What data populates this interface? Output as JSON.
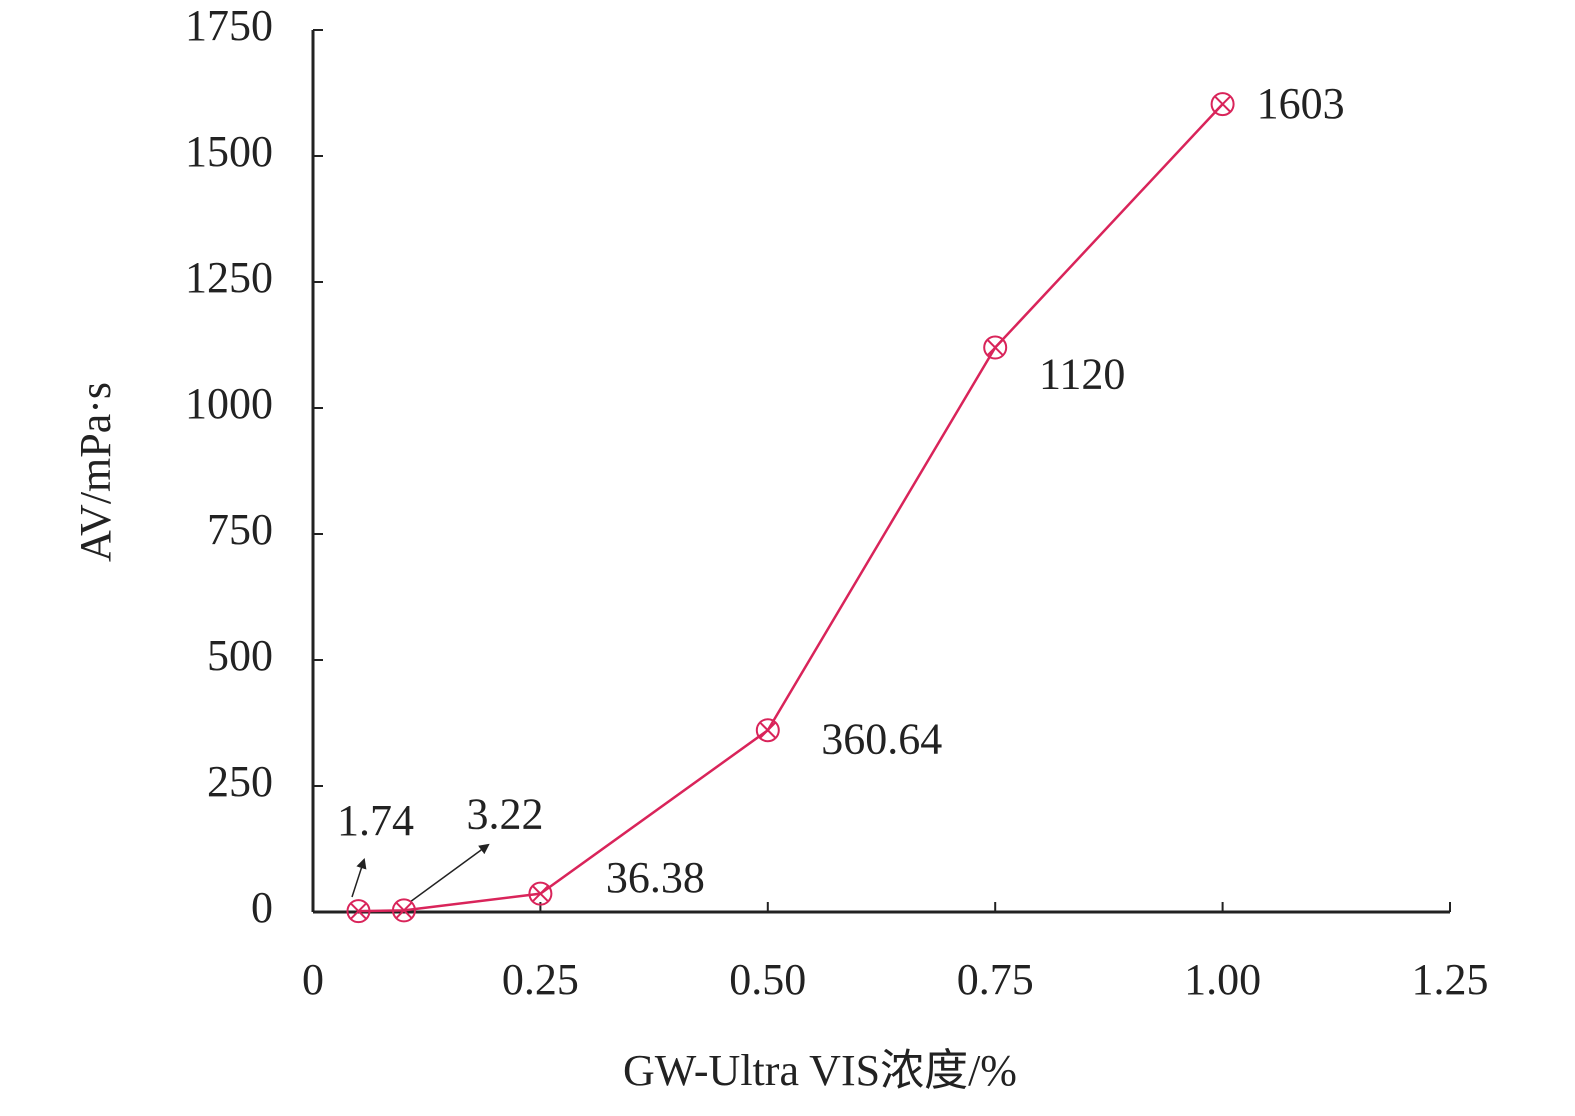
{
  "chart_data": {
    "type": "line",
    "x_label": "GW-Ultra VIS浓度/%",
    "y_label": "AV/mPa·s",
    "x": [
      0.05,
      0.1,
      0.25,
      0.5,
      0.75,
      1.0
    ],
    "series": [
      {
        "name": "AV",
        "color": "#d9245a",
        "values": [
          1.74,
          3.22,
          36.38,
          360.64,
          1120,
          1603
        ]
      }
    ],
    "xlim": [
      0,
      1.25
    ],
    "xticks": [
      0,
      0.25,
      {
        "value": 0.5,
        "label": "0.50"
      },
      0.75,
      {
        "value": 1.0,
        "label": "1.00"
      },
      1.25
    ],
    "ylim": [
      0,
      1750
    ],
    "yticks": [
      0,
      250,
      500,
      750,
      1000,
      1250,
      1500,
      1750
    ],
    "grid": false
  }
}
